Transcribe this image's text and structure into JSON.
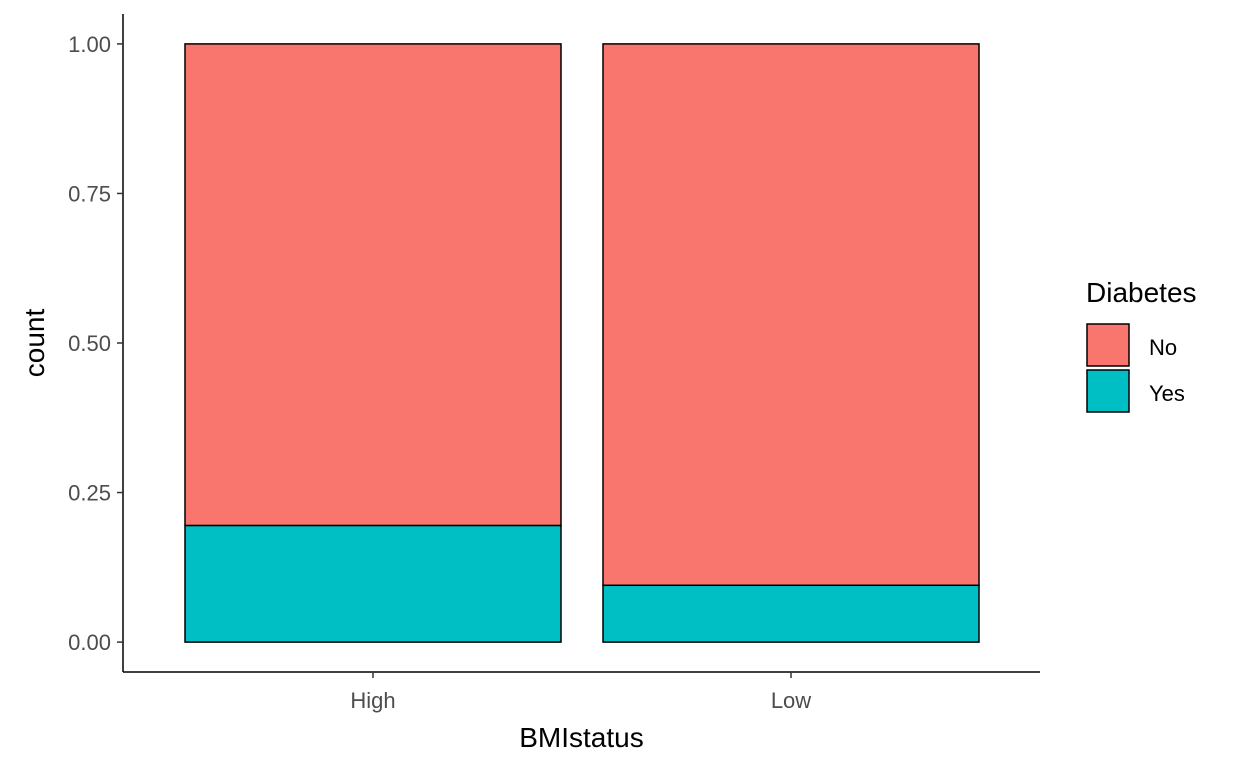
{
  "chart_data": {
    "type": "bar",
    "stacked": true,
    "position": "fill",
    "categories": [
      "High",
      "Low"
    ],
    "series": [
      {
        "name": "No",
        "values": [
          0.805,
          0.905
        ],
        "color": "#F8766D"
      },
      {
        "name": "Yes",
        "values": [
          0.195,
          0.095
        ],
        "color": "#00BFC4"
      }
    ],
    "xlabel": "BMIstatus",
    "ylabel": "count",
    "ylim": [
      -0.05,
      1.05
    ],
    "yticks": [
      "0.00",
      "0.25",
      "0.50",
      "0.75",
      "1.00"
    ],
    "ytick_values": [
      0,
      0.25,
      0.5,
      0.75,
      1.0
    ],
    "grid": false,
    "legend": {
      "title": "Diabetes",
      "placement": "right"
    }
  }
}
